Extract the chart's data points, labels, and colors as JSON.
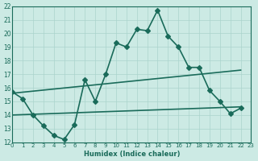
{
  "xlabel": "Humidex (Indice chaleur)",
  "bg_color": "#cceae4",
  "grid_color": "#aad4cc",
  "line_color": "#1a6b5a",
  "xlim": [
    0,
    23
  ],
  "ylim": [
    12,
    22
  ],
  "xticks": [
    0,
    1,
    2,
    3,
    4,
    5,
    6,
    7,
    8,
    9,
    10,
    11,
    12,
    13,
    14,
    15,
    16,
    17,
    18,
    19,
    20,
    21,
    22,
    23
  ],
  "yticks": [
    12,
    13,
    14,
    15,
    16,
    17,
    18,
    19,
    20,
    21,
    22
  ],
  "line1_x": [
    0,
    1,
    2,
    3,
    4,
    5,
    6,
    7,
    8,
    9,
    10,
    11,
    12,
    13,
    14,
    15,
    16,
    17,
    18,
    19,
    20,
    21,
    22
  ],
  "line1_y": [
    15.7,
    15.2,
    14.0,
    13.2,
    12.5,
    12.2,
    13.3,
    16.6,
    15.0,
    17.0,
    19.3,
    19.0,
    20.3,
    20.2,
    21.7,
    19.8,
    19.0,
    17.5,
    17.5,
    15.8,
    15.0,
    14.1,
    14.5
  ],
  "line2_x": [
    0,
    22
  ],
  "line2_y": [
    15.6,
    17.3
  ],
  "line3_x": [
    0,
    22
  ],
  "line3_y": [
    14.0,
    14.6
  ],
  "marker": "D",
  "markersize": 3,
  "linewidth": 1.2
}
